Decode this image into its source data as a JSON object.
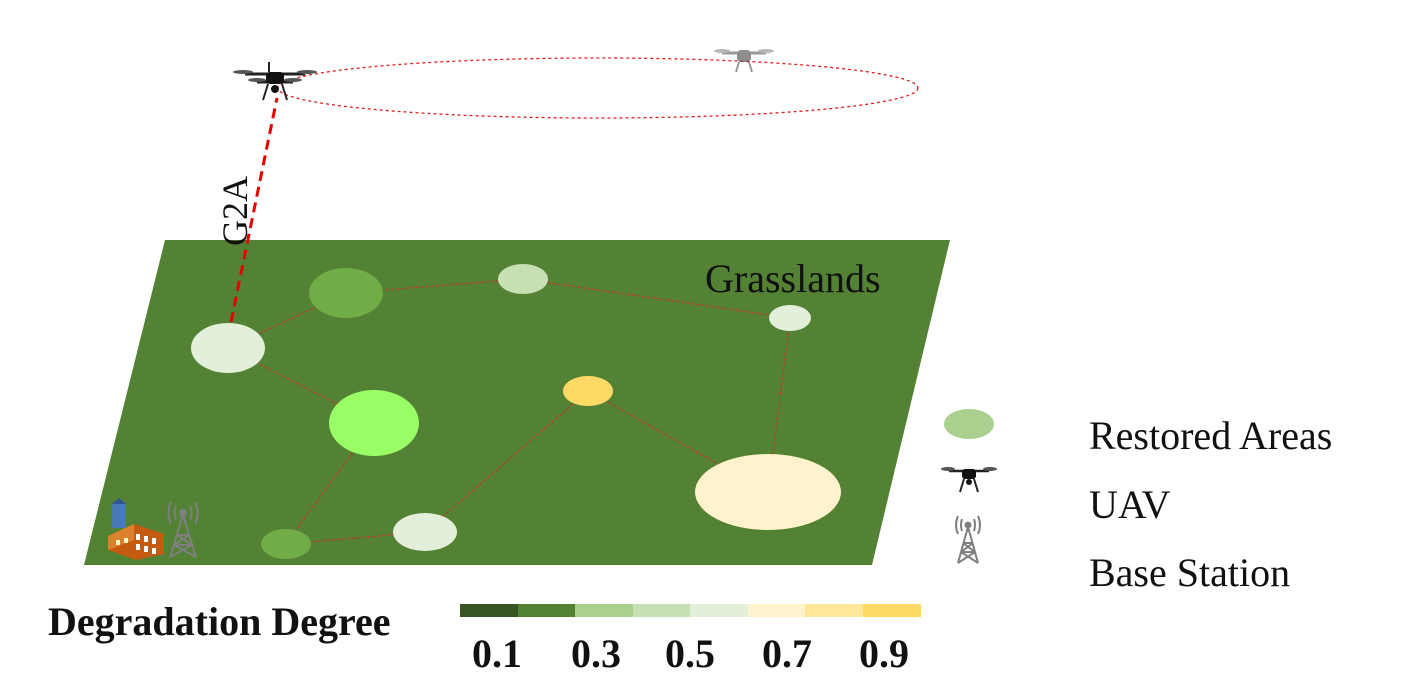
{
  "diagram": {
    "region_label": "Grasslands",
    "link_label": "G2A",
    "colors": {
      "grassland": "#548235",
      "route": "#c0392b",
      "g2a_link": "#e60000",
      "orbit": "#e02020"
    }
  },
  "legend": {
    "items": [
      {
        "label": "Restored Areas",
        "icon": "restored-area-icon"
      },
      {
        "label": "UAV",
        "icon": "uav-icon"
      },
      {
        "label": "Base Station",
        "icon": "base-station-icon"
      }
    ]
  },
  "scale": {
    "title": "Degradation Degree",
    "ticks": [
      "0.1",
      "0.3",
      "0.5",
      "0.7",
      "0.9"
    ],
    "colors": [
      "#375623",
      "#548235",
      "#a9d08e",
      "#c6e0b4",
      "#e2efda",
      "#fff2cc",
      "#ffe699",
      "#ffd966"
    ]
  }
}
